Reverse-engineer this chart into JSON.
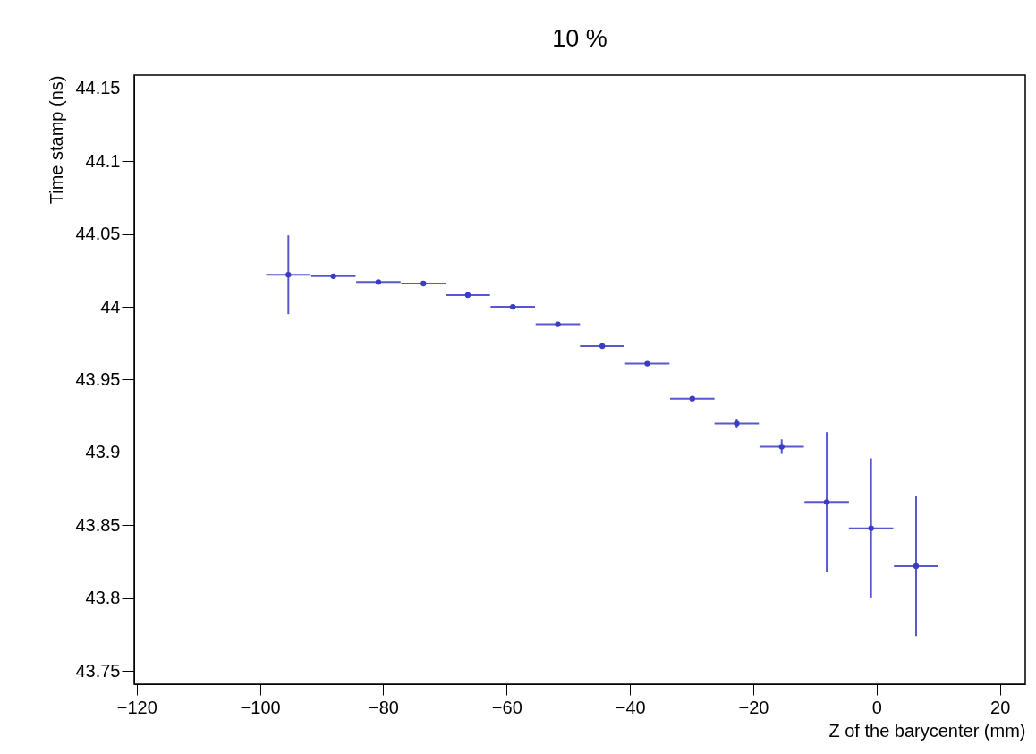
{
  "chart_data": {
    "type": "scatter",
    "title": "10 %",
    "xlabel": "Z of the barycenter (mm)",
    "ylabel": "Time stamp (ns)",
    "x": [
      -95.4,
      -88.1,
      -80.8,
      -73.5,
      -66.3,
      -59.0,
      -51.7,
      -44.5,
      -37.2,
      -29.9,
      -22.7,
      -15.4,
      -8.1,
      -0.9,
      6.4
    ],
    "values": [
      44.022,
      44.021,
      44.017,
      44.016,
      44.008,
      44.0,
      43.988,
      43.973,
      43.961,
      43.937,
      43.92,
      43.904,
      43.866,
      43.848,
      43.822
    ],
    "errors": [
      0.027,
      0.001,
      0.001,
      0.001,
      0.001,
      0.001,
      0.001,
      0.001,
      0.001,
      0.001,
      0.003,
      0.005,
      0.048,
      0.048,
      0.048
    ],
    "xerrors": [
      3.6,
      3.6,
      3.6,
      3.6,
      3.6,
      3.6,
      3.6,
      3.6,
      3.6,
      3.6,
      3.6,
      3.6,
      3.6,
      3.6,
      3.6
    ],
    "color": "#3b3bc4",
    "marker": "circle",
    "grid": false,
    "xlim": [
      -120.4,
      24.1
    ],
    "ylim": [
      43.741,
      44.159
    ],
    "xticks": [
      -120,
      -100,
      -80,
      -60,
      -40,
      -20,
      0,
      20
    ],
    "yticks": [
      43.75,
      43.8,
      43.85,
      43.9,
      43.95,
      44,
      44.05,
      44.1,
      44.15
    ]
  }
}
